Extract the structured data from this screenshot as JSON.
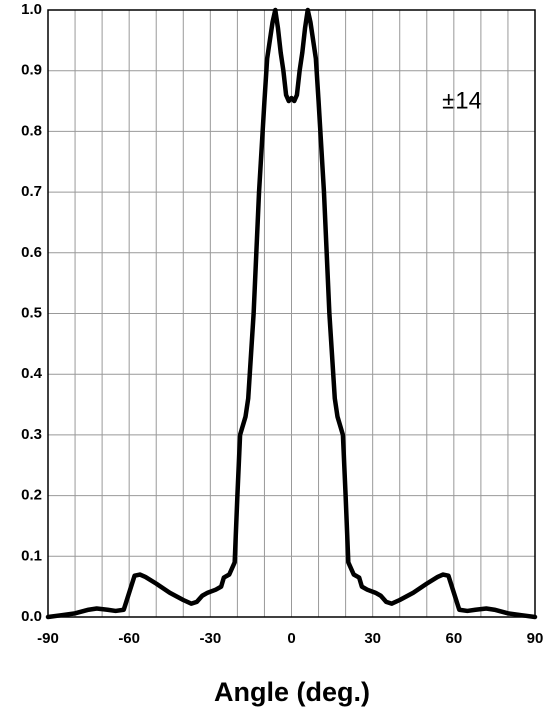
{
  "chart_data": {
    "type": "line",
    "x_label": "Angle (deg.)",
    "annotation": "±14",
    "x": [
      -90,
      -85,
      -80,
      -75,
      -72,
      -68,
      -65,
      -62,
      -60,
      -58,
      -56,
      -54,
      -50,
      -45,
      -40,
      -37,
      -35,
      -33,
      -31,
      -28,
      -26,
      -25,
      -23,
      -21,
      -20,
      -19,
      -17,
      -16,
      -14,
      -12,
      -10,
      -9,
      -7,
      -6,
      -5,
      -4,
      -3,
      -2,
      -1,
      0,
      1,
      2,
      3,
      4,
      5,
      6,
      7,
      9,
      10,
      12,
      14,
      16,
      17,
      19,
      20,
      21,
      23,
      25,
      26,
      28,
      31,
      33,
      35,
      37,
      40,
      45,
      50,
      54,
      56,
      58,
      60,
      62,
      65,
      68,
      72,
      75,
      80,
      85,
      90
    ],
    "series": [
      {
        "color": "#000000",
        "values": [
          0,
          0.003,
          0.006,
          0.012,
          0.014,
          0.012,
          0.01,
          0.012,
          0.04,
          0.068,
          0.07,
          0.066,
          0.055,
          0.04,
          0.028,
          0.022,
          0.025,
          0.035,
          0.04,
          0.045,
          0.05,
          0.065,
          0.07,
          0.09,
          0.2,
          0.3,
          0.33,
          0.36,
          0.5,
          0.7,
          0.85,
          0.92,
          0.98,
          1.0,
          0.97,
          0.93,
          0.9,
          0.86,
          0.85,
          0.855,
          0.85,
          0.86,
          0.9,
          0.93,
          0.97,
          1.0,
          0.98,
          0.92,
          0.85,
          0.7,
          0.5,
          0.36,
          0.33,
          0.3,
          0.2,
          0.09,
          0.07,
          0.065,
          0.05,
          0.045,
          0.04,
          0.035,
          0.025,
          0.022,
          0.028,
          0.04,
          0.055,
          0.066,
          0.07,
          0.068,
          0.04,
          0.012,
          0.01,
          0.012,
          0.014,
          0.012,
          0.006,
          0.003,
          0
        ]
      }
    ],
    "xlim": [
      -90,
      90
    ],
    "xticks": [
      -90,
      -60,
      -30,
      0,
      30,
      60,
      90
    ],
    "x_grid": [
      -80,
      -70,
      -50,
      -40,
      -20,
      -10,
      10,
      20,
      40,
      50,
      70,
      80
    ],
    "ylim": [
      0,
      1
    ],
    "yticks": [
      {
        "value": 0,
        "label": "0.0"
      },
      0.1,
      0.2,
      0.3,
      0.4,
      0.5,
      0.6,
      0.7,
      0.8,
      0.9,
      {
        "value": 1,
        "label": "1.0"
      }
    ],
    "grid": true
  }
}
